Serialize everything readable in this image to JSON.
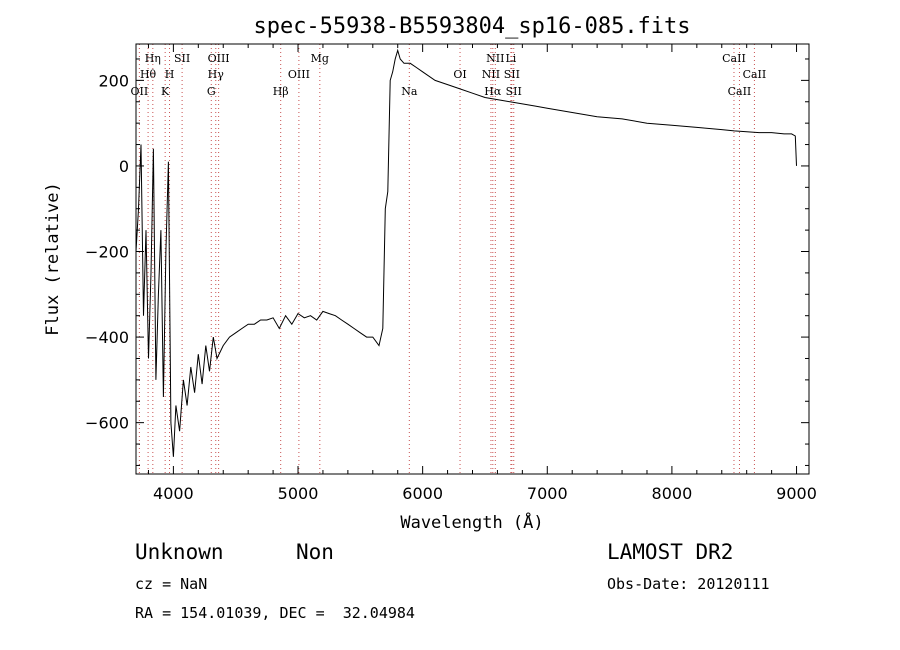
{
  "chart_data": {
    "type": "line",
    "title": "spec-55938-B5593804_sp16-085.fits",
    "xlabel": "Wavelength (Å)",
    "ylabel": "Flux (relative)",
    "xlim": [
      3700,
      9100
    ],
    "ylim": [
      -720,
      285
    ],
    "x_ticks": [
      4000,
      5000,
      6000,
      7000,
      8000,
      9000
    ],
    "y_ticks": [
      -600,
      -400,
      -200,
      0,
      200
    ],
    "grid": false,
    "series": [
      {
        "x": [
          3700,
          3720,
          3740,
          3760,
          3780,
          3800,
          3820,
          3840,
          3860,
          3880,
          3900,
          3920,
          3940,
          3960,
          3980,
          4000,
          4020,
          4050,
          4080,
          4110,
          4140,
          4170,
          4200,
          4230,
          4260,
          4290,
          4320,
          4350,
          4400,
          4450,
          4500,
          4550,
          4600,
          4650,
          4700,
          4750,
          4800,
          4850,
          4900,
          4950,
          5000,
          5050,
          5100,
          5150,
          5200,
          5250,
          5300,
          5350,
          5400,
          5450,
          5500,
          5550,
          5600,
          5650,
          5680,
          5700,
          5720,
          5740,
          5760,
          5780,
          5800,
          5820,
          5850,
          5900,
          5950,
          6000,
          6100,
          6200,
          6300,
          6400,
          6500,
          6600,
          6700,
          6800,
          6900,
          7000,
          7200,
          7400,
          7600,
          7800,
          8000,
          8200,
          8400,
          8500,
          8600,
          8700,
          8800,
          8900,
          8960,
          8990,
          9000
        ],
        "y": [
          -200,
          -100,
          50,
          -350,
          -150,
          -450,
          -250,
          40,
          -500,
          -300,
          -150,
          -540,
          -200,
          10,
          -600,
          -680,
          -560,
          -620,
          -500,
          -560,
          -470,
          -530,
          -440,
          -510,
          -420,
          -480,
          -400,
          -450,
          -420,
          -400,
          -390,
          -380,
          -370,
          -370,
          -360,
          -360,
          -355,
          -380,
          -350,
          -370,
          -345,
          -355,
          -350,
          -360,
          -340,
          -345,
          -350,
          -360,
          -370,
          -380,
          -390,
          -400,
          -400,
          -420,
          -380,
          -100,
          -60,
          200,
          220,
          250,
          270,
          250,
          240,
          240,
          230,
          220,
          200,
          190,
          180,
          170,
          160,
          155,
          150,
          145,
          140,
          135,
          125,
          115,
          110,
          100,
          95,
          90,
          85,
          82,
          80,
          78,
          78,
          75,
          75,
          70,
          0
        ]
      }
    ],
    "emission_lines": [
      {
        "label": "Hη",
        "x": 3835,
        "row": 0
      },
      {
        "label": "Hθ",
        "x": 3797,
        "row": 1
      },
      {
        "label": "OII",
        "x": 3727,
        "row": 2
      },
      {
        "label": "SII",
        "x": 4070,
        "row": 0
      },
      {
        "label": "H",
        "x": 3969,
        "row": 1
      },
      {
        "label": "K",
        "x": 3934,
        "row": 2
      },
      {
        "label": "OIII",
        "x": 4363,
        "row": 0
      },
      {
        "label": "Hγ",
        "x": 4340,
        "row": 1
      },
      {
        "label": "G",
        "x": 4304,
        "row": 2
      },
      {
        "label": "Mg",
        "x": 5175,
        "row": 0
      },
      {
        "label": "OIII",
        "x": 5007,
        "row": 1
      },
      {
        "label": "Hβ",
        "x": 4861,
        "row": 2
      },
      {
        "label": "Na",
        "x": 5893,
        "row": 2
      },
      {
        "label": "OI",
        "x": 6300,
        "row": 1
      },
      {
        "label": "NII",
        "x": 6583,
        "row": 0
      },
      {
        "label": "Li",
        "x": 6708,
        "row": 0
      },
      {
        "label": "NII",
        "x": 6548,
        "row": 1
      },
      {
        "label": "SII",
        "x": 6716,
        "row": 1
      },
      {
        "label": "Hα",
        "x": 6563,
        "row": 2
      },
      {
        "label": "SII",
        "x": 6731,
        "row": 2
      },
      {
        "label": "CaII",
        "x": 8498,
        "row": 0
      },
      {
        "label": "CaII",
        "x": 8662,
        "row": 1
      },
      {
        "label": "CaII",
        "x": 8542,
        "row": 2
      }
    ]
  },
  "info": {
    "class_label": "Unknown",
    "subclass_label": "Non",
    "survey_label": "LAMOST DR2",
    "cz_line": "cz = NaN",
    "obs_date_line": "Obs-Date: 20120111",
    "radec_line": "RA = 154.01039, DEC =  32.04984"
  },
  "colors": {
    "line": "#000000",
    "marker_lines": "#c85050",
    "axes": "#000000",
    "background": "#ffffff"
  }
}
